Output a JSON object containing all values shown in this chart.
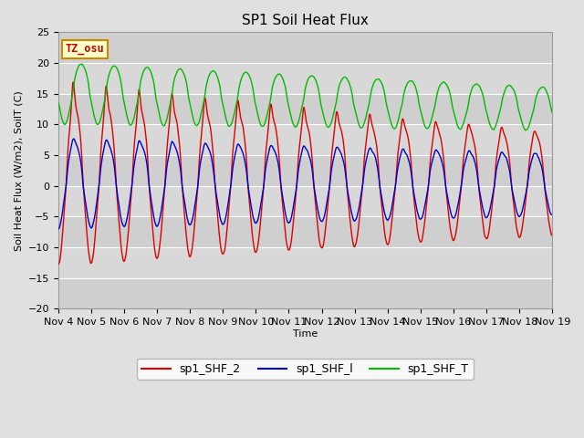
{
  "title": "SP1 Soil Heat Flux",
  "xlabel": "Time",
  "ylabel": "Soil Heat Flux (W/m2), SoilT (C)",
  "ylim": [
    -20,
    25
  ],
  "color_shf2": "#dd0000",
  "color_shf1": "#0000cc",
  "color_shft": "#00bb00",
  "legend_labels": [
    "sp1_SHF_2",
    "sp1_SHF_l",
    "sp1_SHF_T"
  ],
  "tz_label": "TZ_osu",
  "bg_color": "#e0e0e0",
  "plot_bg": "#d8d8d8",
  "grid_color": "#ffffff",
  "title_fontsize": 11,
  "label_fontsize": 8,
  "tick_fontsize": 8
}
